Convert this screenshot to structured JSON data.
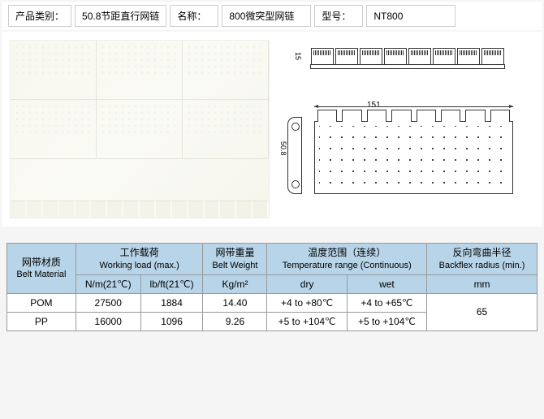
{
  "topInfo": {
    "categoryLabel": "产品类别：",
    "categoryValue": "50.8节距直行网链",
    "nameLabel": "名称：",
    "nameValue": "800微突型网链",
    "modelLabel": "型号：",
    "modelValue": "NT800"
  },
  "diagram": {
    "dim15": "15",
    "dim151": "151",
    "dim50": "50.8"
  },
  "specTable": {
    "headers": {
      "material": {
        "cn": "网带材质",
        "en": "Belt Material"
      },
      "load": {
        "cn": "工作载荷",
        "en": "Working load (max.)"
      },
      "weight": {
        "cn": "网带重量",
        "en": "Belt Weight"
      },
      "temp": {
        "cn": "温度范围（连续）",
        "en": "Temperature range (Continuous)"
      },
      "backflex": {
        "cn": "反向弯曲半径",
        "en": "Backflex radius (min.)"
      }
    },
    "subHeaders": {
      "load_nm": "N/m(21℃)",
      "load_lbft": "lb/ft(21℃)",
      "weight_kg": "Kg/m²",
      "temp_dry": "dry",
      "temp_wet": "wet",
      "backflex_mm": "mm"
    },
    "rows": [
      {
        "material": "POM",
        "nm": "27500",
        "lbft": "1884",
        "kg": "14.40",
        "dry": "+4 to +80℃",
        "wet": "+4 to +65℃"
      },
      {
        "material": "PP",
        "nm": "16000",
        "lbft": "1096",
        "kg": "9.26",
        "dry": "+5 to +104℃",
        "wet": "+5 to +104℃"
      }
    ],
    "backflexValue": "65"
  },
  "colors": {
    "headerBg": "#b8d4e8",
    "subHeaderBg": "#d4e4f0",
    "border": "#999999",
    "text": "#000000"
  }
}
